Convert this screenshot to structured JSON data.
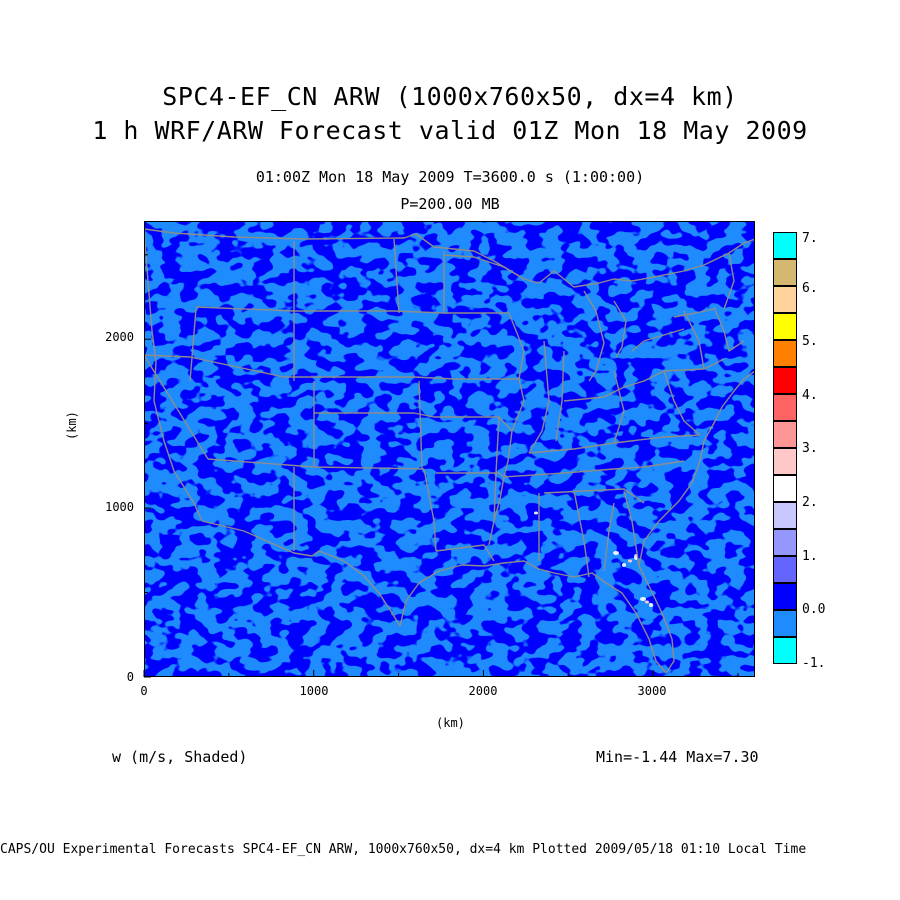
{
  "titles": {
    "line1": "SPC4-EF_CN ARW (1000x760x50, dx=4 km)",
    "line2": "1 h WRF/ARW Forecast valid 01Z Mon 18 May 2009",
    "time_info": "01:00Z Mon 18 May 2009    T=3600.0 s (1:00:00)",
    "level": "P=200.00 MB"
  },
  "axes": {
    "x_label": "(km)",
    "y_label": "(km)",
    "x_ticks": [
      "0",
      "1000",
      "2000",
      "3000"
    ],
    "x_tick_values": [
      0,
      1000,
      2000,
      3000
    ],
    "y_ticks": [
      "0",
      "1000",
      "2000"
    ],
    "y_tick_values": [
      0,
      1000,
      2000
    ],
    "x_range": [
      0,
      3600
    ],
    "y_range": [
      0,
      2700
    ]
  },
  "colorbar": {
    "labels": [
      "7.",
      "6.",
      "5.",
      "4.",
      "3.",
      "2.",
      "1.",
      "0.0",
      "-1."
    ],
    "colors_top_to_bottom": [
      "#00ffff",
      "#d4b870",
      "#ffd39b",
      "#ffff00",
      "#ff8000",
      "#ff0000",
      "#ff6464",
      "#ff9696",
      "#ffc8c8",
      "#ffffff",
      "#c8c8ff",
      "#9696ff",
      "#6464ff",
      "#0000ff",
      "#1e8cff",
      "#00ffff"
    ]
  },
  "field": {
    "variable": "w (m/s, Shaded)",
    "minmax": "Min=-1.44 Max=7.30"
  },
  "colors": {
    "background_blue": "#1e8cff",
    "dark_blue": "#0000ff",
    "boundary": "#8c8c8c"
  },
  "footer": "CAPS/OU Experimental Forecasts  SPC4-EF_CN ARW, 1000x760x50, dx=4 km  Plotted 2009/05/18 01:10 Local Time"
}
